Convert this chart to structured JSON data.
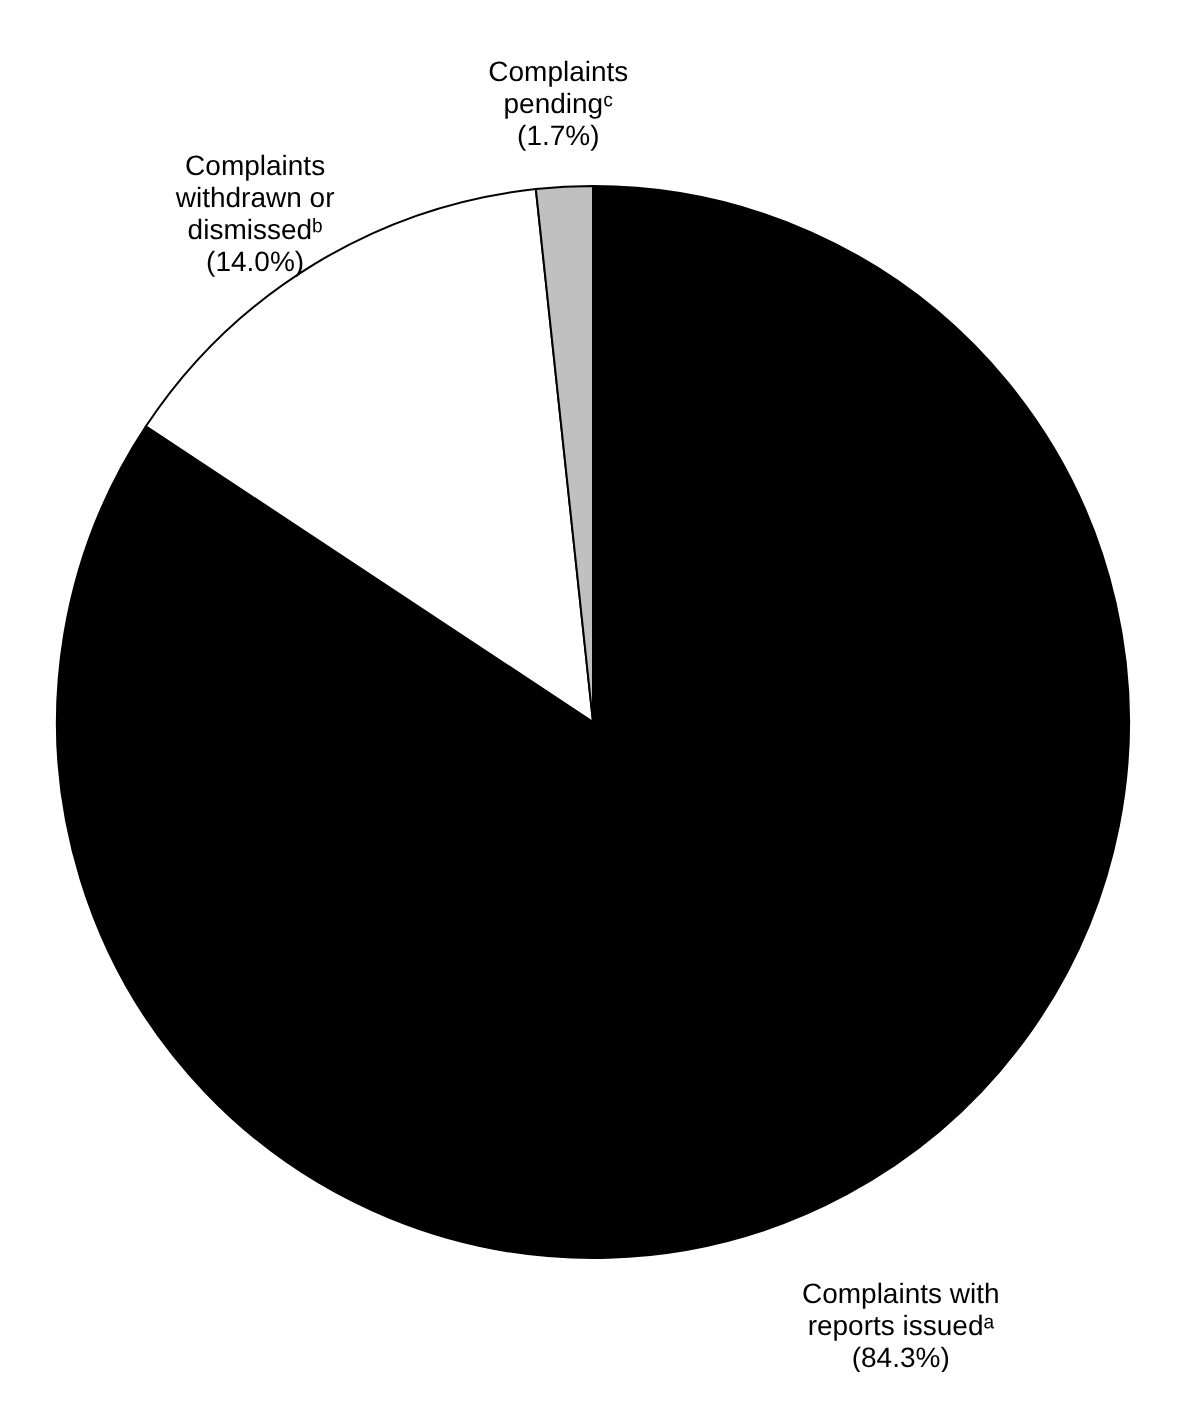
{
  "chart_data": {
    "type": "pie",
    "categories": [
      "Complaints with reports issuedᵃ",
      "Complaints withdrawn or dismissedᵇ",
      "Complaints pendingᶜ"
    ],
    "values": [
      84.3,
      14.0,
      1.7
    ],
    "colors": [
      "#000000",
      "#ffffff",
      "#c0c0c0"
    ],
    "value_labels": [
      "(84.3%)",
      "(14.0%)",
      "(1.7%)"
    ]
  }
}
